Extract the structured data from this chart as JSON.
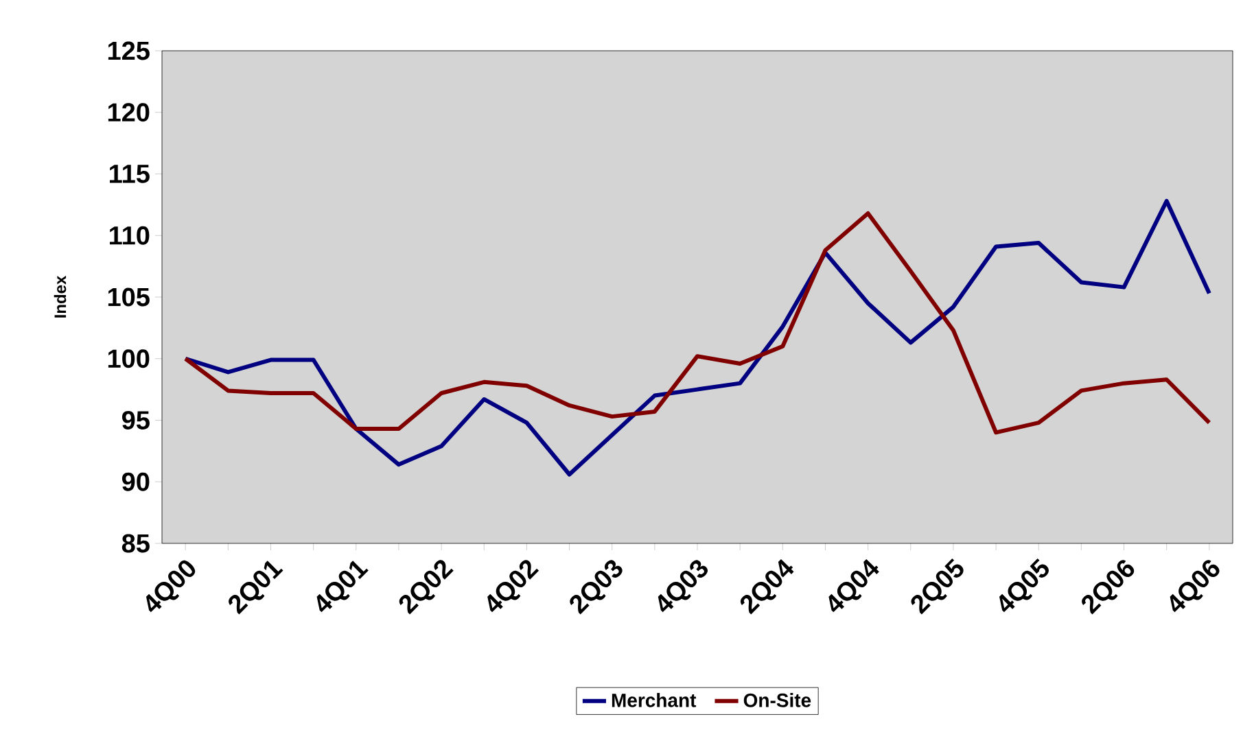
{
  "chart_data": {
    "type": "line",
    "ylabel": "Index",
    "categories": [
      "4Q00",
      null,
      "2Q01",
      null,
      "4Q01",
      null,
      "2Q02",
      null,
      "4Q02",
      null,
      "2Q03",
      null,
      "4Q03",
      null,
      "2Q04",
      null,
      "4Q04",
      null,
      "2Q05",
      null,
      "4Q05",
      null,
      "2Q06",
      null,
      "4Q06"
    ],
    "series": [
      {
        "name": "Merchant",
        "color": "#000080",
        "values": [
          100,
          98.9,
          99.9,
          99.9,
          94.3,
          91.4,
          92.9,
          96.7,
          94.8,
          90.6,
          93.8,
          97.0,
          97.5,
          98.0,
          102.6,
          108.6,
          104.5,
          101.3,
          104.2,
          109.1,
          109.4,
          106.2,
          105.8,
          112.8,
          105.3
        ]
      },
      {
        "name": "On-Site",
        "color": "#800000",
        "values": [
          100,
          97.4,
          97.2,
          97.2,
          94.3,
          94.3,
          97.2,
          98.1,
          97.8,
          96.2,
          95.3,
          95.7,
          100.2,
          99.6,
          101.0,
          108.8,
          111.8,
          107.1,
          102.3,
          94.0,
          94.8,
          97.4,
          98.0,
          98.3,
          94.8
        ]
      }
    ],
    "ylim": [
      85,
      125
    ],
    "yticks": [
      85,
      90,
      95,
      100,
      105,
      110,
      115,
      120,
      125
    ],
    "legend": "bottom",
    "grid": false,
    "marker": "none",
    "line_style": "solid"
  }
}
